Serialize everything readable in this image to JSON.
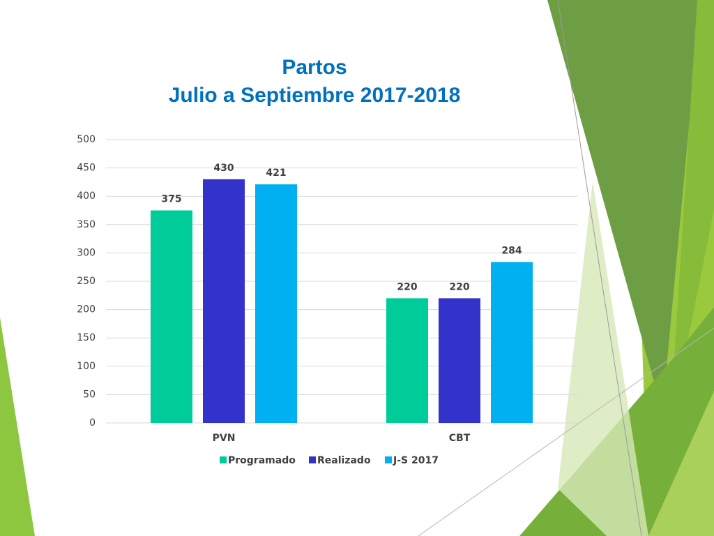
{
  "chart_data": {
    "type": "bar",
    "title": "Partos",
    "subtitle": "Julio a Septiembre 2017-2018",
    "categories": [
      "PVN",
      "CBT"
    ],
    "series": [
      {
        "name": "Programado",
        "color": "#00CC99",
        "values": [
          375,
          220
        ]
      },
      {
        "name": "Realizado",
        "color": "#3333CC",
        "values": [
          430,
          220
        ]
      },
      {
        "name": "J-S 2017",
        "color": "#00B0F0",
        "values": [
          421,
          284
        ]
      }
    ],
    "ylim": [
      0,
      500
    ],
    "yticks": [
      0,
      50,
      100,
      150,
      200,
      250,
      300,
      350,
      400,
      450,
      500
    ],
    "grid": true,
    "legend": "bottom"
  }
}
